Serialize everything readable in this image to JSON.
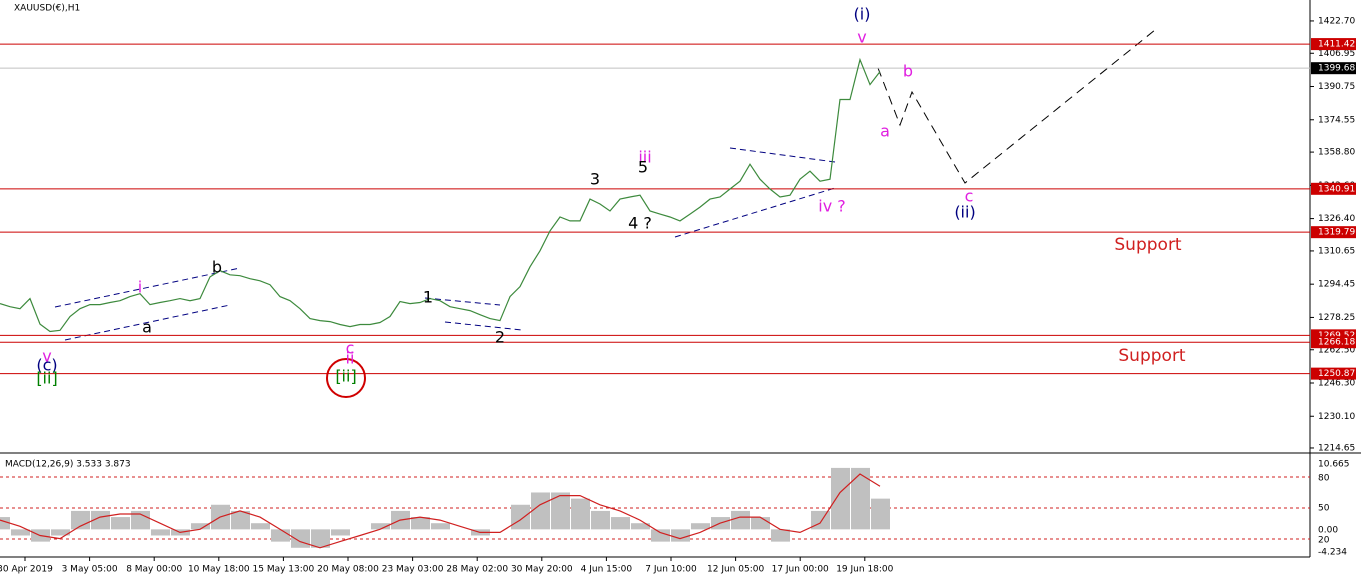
{
  "chart_data": {
    "type": "line",
    "title": "XAUUSD(€),H1",
    "color": "#3d8a3d",
    "xtick_labels": [
      "30 Apr 2019",
      "3 May 05:00",
      "8 May 00:00",
      "10 May 18:00",
      "15 May 13:00",
      "20 May 08:00",
      "23 May 03:00",
      "28 May 02:00",
      "30 May 20:00",
      "4 Jun 15:00",
      "7 Jun 10:00",
      "12 Jun 05:00",
      "17 Jun 00:00",
      "19 Jun 18:00"
    ],
    "values": [
      1285,
      1283.5,
      1282.5,
      1287.4,
      1275,
      1271.4,
      1272,
      1278.7,
      1282.5,
      1284.5,
      1284.5,
      1285.5,
      1286.4,
      1288.4,
      1289.8,
      1284.5,
      1285.5,
      1286.4,
      1287.4,
      1286.4,
      1287.4,
      1298,
      1301,
      1299,
      1298.6,
      1297.1,
      1296.1,
      1294.2,
      1288.4,
      1286.4,
      1282.5,
      1277.7,
      1276.7,
      1276.2,
      1274.8,
      1273.8,
      1274.8,
      1274.8,
      1275.8,
      1278.7,
      1286,
      1285,
      1285.5,
      1287.4,
      1286.4,
      1283.5,
      1282.5,
      1281.6,
      1279.6,
      1277.7,
      1276.7,
      1288.4,
      1293.2,
      1302.9,
      1310.7,
      1320.4,
      1327.2,
      1325.3,
      1325.3,
      1335.9,
      1333.5,
      1330.1,
      1335.9,
      1336.9,
      1337.8,
      1330.1,
      1328.6,
      1327.2,
      1325.3,
      1328.6,
      1332,
      1335.9,
      1336.9,
      1340.8,
      1344.6,
      1352.9,
      1345.6,
      1340.8,
      1336.9,
      1337.8,
      1345.6,
      1349.5,
      1344.6,
      1345.6,
      1384.4,
      1384.4,
      1403.8,
      1391.7,
      1398
    ],
    "ylim": [
      1212.2,
      1432.9
    ],
    "yticks": [
      {
        "value": 1422.7,
        "label": "1422.70"
      },
      1406.95,
      1390.75,
      1374.55,
      {
        "value": 1358.8,
        "label": "1358.80"
      },
      {
        "value": 1342.6,
        "label": "1342.60"
      },
      {
        "value": 1326.4,
        "label": "1326.40"
      },
      1310.65,
      1294.45,
      1278.25,
      {
        "value": 1262.5,
        "label": "1262.50"
      },
      {
        "value": 1246.3,
        "label": "1246.30"
      },
      {
        "value": 1230.1,
        "label": "1230.10"
      },
      1214.65
    ],
    "levels": [
      {
        "value": 1411.42,
        "color": "#cc0000"
      },
      {
        "value": 1340.91,
        "color": "#cc0000"
      },
      {
        "value": 1319.79,
        "color": "#cc0000"
      },
      {
        "value": 1269.52,
        "color": "#cc0000"
      },
      {
        "value": 1266.18,
        "color": "#cc0000"
      },
      {
        "value": 1250.87,
        "color": "#cc0000"
      },
      {
        "value": 1399.68,
        "color": "#c0c0c0"
      }
    ]
  },
  "annotations": [
    {
      "text": "(i)",
      "color": "#000080"
    },
    {
      "text": "v",
      "color": "#e020e0"
    },
    {
      "text": "b",
      "color": "#e020e0"
    },
    {
      "text": "a",
      "color": "#e020e0"
    },
    {
      "text": "c",
      "color": "#e020e0"
    },
    {
      "text": "(ii)",
      "color": "#000080"
    },
    {
      "text": "iii",
      "color": "#e020e0"
    },
    {
      "text": "3",
      "color": "#000000"
    },
    {
      "text": "5",
      "color": "#000000"
    },
    {
      "text": "4 ?",
      "color": "#000000"
    },
    {
      "text": "iv ?",
      "color": "#e020e0"
    },
    {
      "text": "b",
      "color": "#000000"
    },
    {
      "text": "a",
      "color": "#000000"
    },
    {
      "text": "i",
      "color": "#e020e0"
    },
    {
      "text": "1",
      "color": "#000000"
    },
    {
      "text": "2",
      "color": "#000000"
    },
    {
      "text": "v",
      "color": "#e020e0"
    },
    {
      "text": "(c)",
      "color": "#000080"
    },
    {
      "text": "[ii]",
      "color": "#008000"
    },
    {
      "text": "c",
      "color": "#e020e0"
    },
    {
      "text": "ii",
      "color": "#e020e0"
    },
    {
      "text": "[ii]",
      "color": "#008000"
    }
  ],
  "support": [
    "Support",
    "Support"
  ],
  "macd": {
    "label": "MACD(12,26,9) 3.533 3.873",
    "ylim": [
      -4.5,
      12.1
    ],
    "histogram": [
      2,
      -1,
      -2,
      -1,
      3,
      3,
      2,
      3,
      -1,
      -1,
      1,
      4,
      3,
      1,
      -2,
      -3,
      -3,
      -1,
      0,
      1,
      3,
      2,
      1,
      0,
      -1,
      0,
      4,
      6,
      6,
      5,
      3,
      2,
      1,
      -2,
      -2,
      1,
      2,
      3,
      2,
      -2,
      0,
      3,
      10,
      10,
      5
    ],
    "signal": [
      1.5,
      0.5,
      -1,
      -1.5,
      0.5,
      2,
      2.5,
      2.5,
      1,
      -0.5,
      0,
      2,
      3,
      2,
      0,
      -2,
      -3,
      -2,
      -1,
      0,
      1.5,
      2,
      1.5,
      0.5,
      -0.5,
      -0.5,
      1.5,
      4,
      5.5,
      5.5,
      4,
      3,
      1.5,
      -0.5,
      -1.5,
      -0.5,
      1,
      2,
      2,
      0,
      -0.5,
      1,
      6,
      9,
      7
    ],
    "tick_labels": [
      "10.665",
      "80",
      "50",
      "0.00",
      "20",
      "-4.234"
    ]
  }
}
